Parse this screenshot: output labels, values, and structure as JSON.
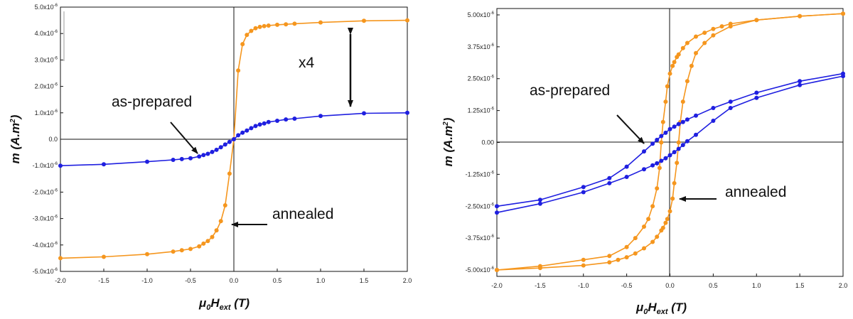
{
  "colors": {
    "as_prepared": "#1f1fe0",
    "annealed": "#f5961e",
    "axis": "#111111"
  },
  "chart_data": [
    {
      "type": "line",
      "x_label_parts": {
        "mu": "μ",
        "sub0": "0",
        "H": "H",
        "sub_ext": "ext",
        "unit": " (T)"
      },
      "y_label_parts": {
        "m": "m",
        "unit_open": " (A.m",
        "sup": "2",
        "unit_close": ")"
      },
      "xlim": [
        -2.0,
        2.0
      ],
      "ylim": [
        -5e-06,
        5e-06
      ],
      "x_ticks": [
        -2.0,
        -1.5,
        -1.0,
        -0.5,
        0.0,
        0.5,
        1.0,
        1.5,
        2.0
      ],
      "x_tick_labels": [
        "-2.0",
        "-1.5",
        "-1.0",
        "-0.5",
        "0.0",
        "0.5",
        "1.0",
        "1.5",
        "2.0"
      ],
      "y_ticks": [
        -5e-06,
        -4e-06,
        -3e-06,
        -2e-06,
        -1e-06,
        0,
        1e-06,
        2e-06,
        3e-06,
        4e-06,
        5e-06
      ],
      "y_tick_labels": [
        {
          "mant": "-5.0x10",
          "exp": "-6"
        },
        {
          "mant": "-4.0x10",
          "exp": "-6"
        },
        {
          "mant": "-3.0x10",
          "exp": "-6"
        },
        {
          "mant": "-2.0x10",
          "exp": "-6"
        },
        {
          "mant": "-1.0x10",
          "exp": "-6"
        },
        {
          "mant": "0.0",
          "exp": ""
        },
        {
          "mant": "1.0x10",
          "exp": "-6"
        },
        {
          "mant": "2.0x10",
          "exp": "-6"
        },
        {
          "mant": "3.0x10",
          "exp": "-6"
        },
        {
          "mant": "4.0x10",
          "exp": "-6"
        },
        {
          "mant": "5.0x10",
          "exp": "-6"
        }
      ],
      "series": [
        {
          "key": "annealed",
          "x": [
            -2.0,
            -1.5,
            -1.0,
            -0.7,
            -0.6,
            -0.5,
            -0.4,
            -0.35,
            -0.3,
            -0.25,
            -0.2,
            -0.15,
            -0.1,
            -0.05,
            0.0,
            0.05,
            0.1,
            0.15,
            0.2,
            0.25,
            0.3,
            0.35,
            0.4,
            0.5,
            0.6,
            0.7,
            1.0,
            1.5,
            2.0
          ],
          "y": [
            -4.5e-06,
            -4.45e-06,
            -4.35e-06,
            -4.25e-06,
            -4.2e-06,
            -4.15e-06,
            -4.05e-06,
            -3.95e-06,
            -3.85e-06,
            -3.7e-06,
            -3.45e-06,
            -3.1e-06,
            -2.5e-06,
            -1.3e-06,
            0.0,
            2.6e-06,
            3.6e-06,
            3.95e-06,
            4.1e-06,
            4.2e-06,
            4.25e-06,
            4.28e-06,
            4.3e-06,
            4.33e-06,
            4.35e-06,
            4.37e-06,
            4.42e-06,
            4.48e-06,
            4.5e-06
          ]
        },
        {
          "key": "as_prepared",
          "x": [
            -2.0,
            -1.5,
            -1.0,
            -0.7,
            -0.6,
            -0.5,
            -0.4,
            -0.35,
            -0.3,
            -0.25,
            -0.2,
            -0.15,
            -0.1,
            -0.05,
            0.0,
            0.05,
            0.1,
            0.15,
            0.2,
            0.25,
            0.3,
            0.35,
            0.4,
            0.5,
            0.6,
            0.7,
            1.0,
            1.5,
            2.0
          ],
          "y": [
            -1e-06,
            -9.5e-07,
            -8.5e-07,
            -7.8e-07,
            -7.5e-07,
            -7.2e-07,
            -6.5e-07,
            -6e-07,
            -5.5e-07,
            -4.8e-07,
            -4e-07,
            -3e-07,
            -2e-07,
            -1e-07,
            0.0,
            1.5e-07,
            2.5e-07,
            3.3e-07,
            4.2e-07,
            5e-07,
            5.6e-07,
            6e-07,
            6.5e-07,
            7e-07,
            7.5e-07,
            7.8e-07,
            8.8e-07,
            9.8e-07,
            1e-06
          ]
        }
      ],
      "annotations": {
        "scale": "x4",
        "as_prepared": "as-prepared",
        "annealed": "annealed"
      }
    },
    {
      "type": "line",
      "x_label_parts": {
        "mu": "μ",
        "sub0": "0",
        "H": "H",
        "sub_ext": "ext",
        "unit": " (T)"
      },
      "y_label_parts": {
        "m": "m",
        "unit_open": " (A.m",
        "sup": "2",
        "unit_close": ")"
      },
      "xlim": [
        -2.0,
        2.0
      ],
      "ylim": [
        -5.25e-06,
        5.25e-06
      ],
      "x_ticks": [
        -2.0,
        -1.5,
        -1.0,
        -0.5,
        0.0,
        0.5,
        1.0,
        1.5,
        2.0
      ],
      "x_tick_labels": [
        "-2.0",
        "-1.5",
        "-1.0",
        "-0.5",
        "0.0",
        "0.5",
        "1.0",
        "1.5",
        "2.0"
      ],
      "y_ticks": [
        -5e-06,
        -3.75e-06,
        -2.5e-06,
        -1.25e-06,
        0,
        1.25e-06,
        2.5e-06,
        3.75e-06,
        5e-06
      ],
      "y_tick_labels": [
        {
          "mant": "-5.00x10",
          "exp": "-6"
        },
        {
          "mant": "-3.75x10",
          "exp": "-6"
        },
        {
          "mant": "-2.50x10",
          "exp": "-6"
        },
        {
          "mant": "-1.25x10",
          "exp": "-6"
        },
        {
          "mant": "0.00",
          "exp": ""
        },
        {
          "mant": "1.25x10",
          "exp": "-6"
        },
        {
          "mant": "2.50x10",
          "exp": "-6"
        },
        {
          "mant": "3.75x10",
          "exp": "-6"
        },
        {
          "mant": "5.00x10",
          "exp": "-6"
        }
      ],
      "series": [
        {
          "key": "annealed",
          "x": [
            -2.0,
            -1.5,
            -1.0,
            -0.7,
            -0.5,
            -0.4,
            -0.3,
            -0.25,
            -0.2,
            -0.15,
            -0.12,
            -0.1,
            -0.08,
            -0.05,
            -0.03,
            0.0,
            0.03,
            0.05,
            0.08,
            0.1,
            0.15,
            0.2,
            0.3,
            0.4,
            0.5,
            0.6,
            0.7,
            1.0,
            1.5,
            2.0
          ],
          "y": [
            -5e-06,
            -4.85e-06,
            -4.6e-06,
            -4.45e-06,
            -4.1e-06,
            -3.75e-06,
            -3.3e-06,
            -3e-06,
            -2.5e-06,
            -1.8e-06,
            -1e-06,
            0.0,
            8e-07,
            1.6e-06,
            2.2e-06,
            2.7e-06,
            3e-06,
            3.15e-06,
            3.35e-06,
            3.45e-06,
            3.7e-06,
            3.9e-06,
            4.15e-06,
            4.3e-06,
            4.45e-06,
            4.55e-06,
            4.65e-06,
            4.8e-06,
            4.95e-06,
            5.05e-06
          ]
        },
        {
          "key": "annealed",
          "x": [
            2.0,
            1.5,
            1.0,
            0.7,
            0.5,
            0.4,
            0.3,
            0.25,
            0.2,
            0.15,
            0.12,
            0.1,
            0.08,
            0.05,
            0.03,
            0.0,
            -0.03,
            -0.05,
            -0.08,
            -0.1,
            -0.15,
            -0.2,
            -0.3,
            -0.4,
            -0.5,
            -0.6,
            -0.7,
            -1.0,
            -1.5,
            -2.0
          ],
          "y": [
            5.05e-06,
            4.95e-06,
            4.8e-06,
            4.55e-06,
            4.2e-06,
            3.9e-06,
            3.5e-06,
            3e-06,
            2.4e-06,
            1.6e-06,
            8e-07,
            0.0,
            -8e-07,
            -1.6e-06,
            -2.2e-06,
            -2.7e-06,
            -3e-06,
            -3.15e-06,
            -3.35e-06,
            -3.45e-06,
            -3.7e-06,
            -3.9e-06,
            -4.15e-06,
            -4.35e-06,
            -4.5e-06,
            -4.6e-06,
            -4.7e-06,
            -4.82e-06,
            -4.92e-06,
            -5e-06
          ]
        },
        {
          "key": "as_prepared",
          "x": [
            -2.0,
            -1.5,
            -1.0,
            -0.7,
            -0.5,
            -0.3,
            -0.2,
            -0.15,
            -0.1,
            -0.05,
            0.0,
            0.05,
            0.1,
            0.15,
            0.2,
            0.3,
            0.5,
            0.7,
            1.0,
            1.5,
            2.0
          ],
          "y": [
            -2.5e-06,
            -2.25e-06,
            -1.75e-06,
            -1.4e-06,
            -9.5e-07,
            -3.5e-07,
            -5e-08,
            1e-07,
            2.5e-07,
            3.8e-07,
            5.2e-07,
            6.2e-07,
            7.2e-07,
            8e-07,
            9e-07,
            1.05e-06,
            1.35e-06,
            1.6e-06,
            1.95e-06,
            2.4e-06,
            2.7e-06
          ]
        },
        {
          "key": "as_prepared",
          "x": [
            2.0,
            1.5,
            1.0,
            0.7,
            0.5,
            0.3,
            0.2,
            0.15,
            0.1,
            0.05,
            0.0,
            -0.05,
            -0.1,
            -0.15,
            -0.2,
            -0.3,
            -0.5,
            -0.7,
            -1.0,
            -1.5,
            -2.0
          ],
          "y": [
            2.6e-06,
            2.25e-06,
            1.75e-06,
            1.35e-06,
            8.5e-07,
            3e-07,
            5e-08,
            -1e-07,
            -2.5e-07,
            -3.8e-07,
            -5e-07,
            -6.2e-07,
            -7.2e-07,
            -8.2e-07,
            -9e-07,
            -1.05e-06,
            -1.35e-06,
            -1.6e-06,
            -1.95e-06,
            -2.4e-06,
            -2.75e-06
          ]
        }
      ],
      "annotations": {
        "as_prepared": "as-prepared",
        "annealed": "annealed"
      }
    }
  ]
}
